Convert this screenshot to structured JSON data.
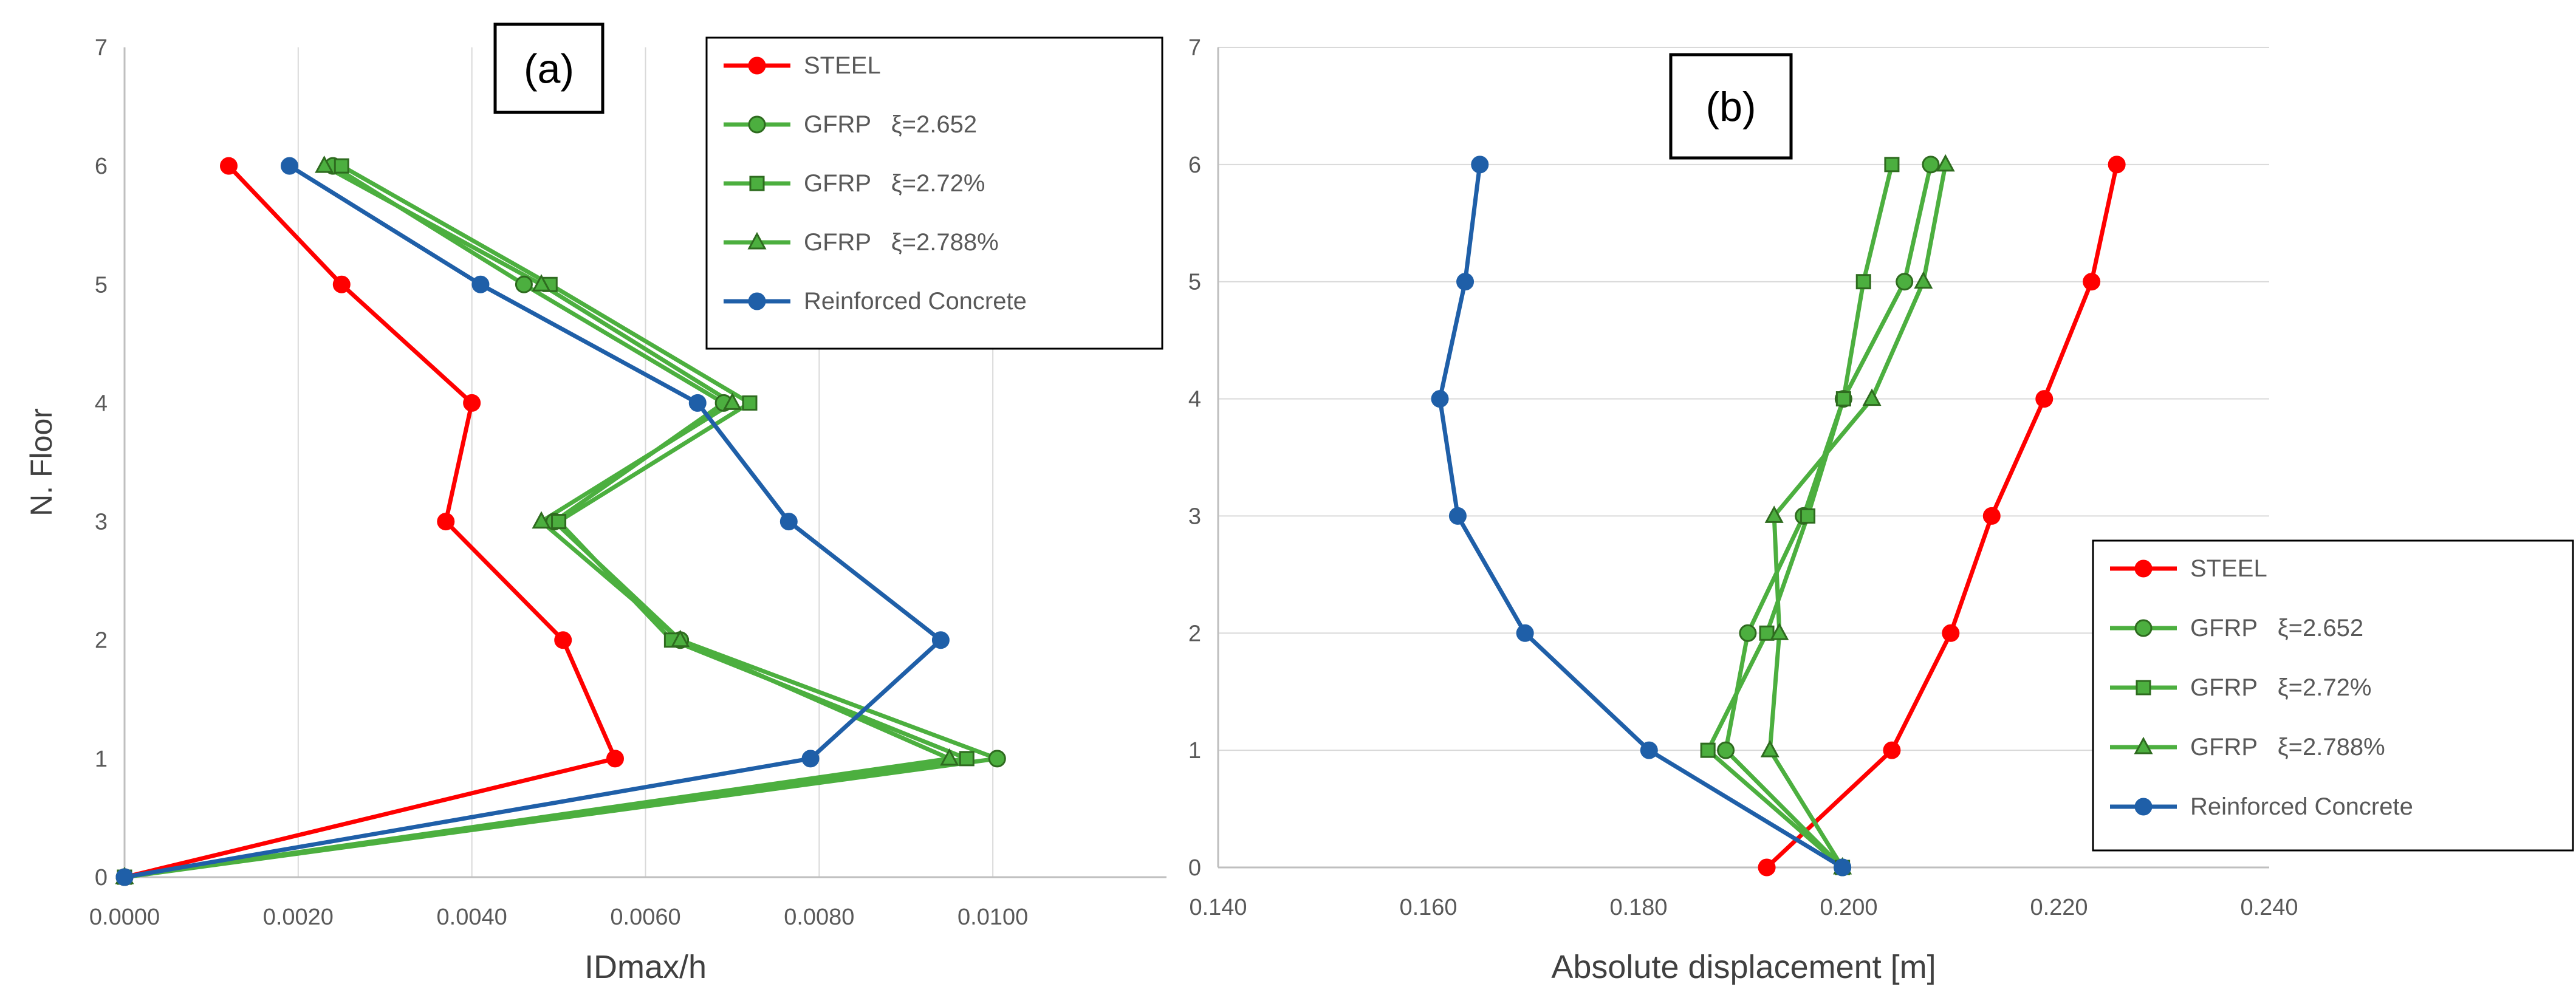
{
  "chart_data": [
    {
      "type": "line",
      "panel_label": "(a)",
      "xlabel": "IDmax/h",
      "ylabel": "N. Floor",
      "xlim": [
        0,
        0.012
      ],
      "ylim": [
        0,
        7
      ],
      "xticks": [
        0.0,
        0.002,
        0.004,
        0.006,
        0.008,
        0.01
      ],
      "xtick_labels": [
        "0.0000",
        "0.0020",
        "0.0040",
        "0.0060",
        "0.0080",
        "0.0100"
      ],
      "yticks": [
        0,
        1,
        2,
        3,
        4,
        5,
        6,
        7
      ],
      "ytick_labels": [
        "0",
        "1",
        "2",
        "3",
        "4",
        "5",
        "6",
        "7"
      ],
      "grid": "vertical",
      "legend_position": "top-right",
      "series": [
        {
          "name": "STEEL",
          "color": "#ff0000",
          "marker": "circle",
          "x": [
            0.0,
            0.00565,
            0.00505,
            0.0037,
            0.004,
            0.0025,
            0.0012
          ],
          "y": [
            0,
            1,
            2,
            3,
            4,
            5,
            6
          ]
        },
        {
          "name": "GFRP   ξ=2.652",
          "color": "#4caf3f",
          "marker": "circle",
          "x": [
            0.0,
            0.01005,
            0.0064,
            0.00495,
            0.0069,
            0.0046,
            0.0024
          ],
          "y": [
            0,
            1,
            2,
            3,
            4,
            5,
            6
          ]
        },
        {
          "name": "GFRP   ξ=2.72%",
          "color": "#4caf3f",
          "marker": "square",
          "x": [
            0.0,
            0.0097,
            0.0063,
            0.005,
            0.0072,
            0.0049,
            0.0025
          ],
          "y": [
            0,
            1,
            2,
            3,
            4,
            5,
            6
          ]
        },
        {
          "name": "GFRP   ξ=2.788%",
          "color": "#4caf3f",
          "marker": "triangle",
          "x": [
            0.0,
            0.0095,
            0.0064,
            0.0048,
            0.007,
            0.0048,
            0.0023
          ],
          "y": [
            0,
            1,
            2,
            3,
            4,
            5,
            6
          ]
        },
        {
          "name": "Reinforced Concrete",
          "color": "#1f5fa8",
          "marker": "circle",
          "x": [
            0.0,
            0.0079,
            0.0094,
            0.00765,
            0.0066,
            0.0041,
            0.0019
          ],
          "y": [
            0,
            1,
            2,
            3,
            4,
            5,
            6
          ]
        }
      ]
    },
    {
      "type": "line",
      "panel_label": "(b)",
      "xlabel": "Absolute displacement [m]",
      "ylabel": "",
      "xlim": [
        0.14,
        0.24
      ],
      "ylim": [
        0,
        7
      ],
      "xticks": [
        0.14,
        0.16,
        0.18,
        0.2,
        0.22,
        0.24
      ],
      "xtick_labels": [
        "0.140",
        "0.160",
        "0.180",
        "0.200",
        "0.220",
        "0.240"
      ],
      "yticks": [
        0,
        1,
        2,
        3,
        4,
        5,
        6,
        7
      ],
      "ytick_labels": [
        "0",
        "1",
        "2",
        "3",
        "4",
        "5",
        "6",
        "7"
      ],
      "grid": "horizontal",
      "legend_position": "bottom-right",
      "series": [
        {
          "name": "STEEL",
          "color": "#ff0000",
          "marker": "circle",
          "x": [
            0.1922,
            0.2041,
            0.2097,
            0.2136,
            0.2186,
            0.2231,
            0.2255
          ],
          "y": [
            0,
            1,
            2,
            3,
            4,
            5,
            6
          ]
        },
        {
          "name": "GFRP   ξ=2.652",
          "color": "#4caf3f",
          "marker": "circle",
          "x": [
            0.1994,
            0.1883,
            0.1904,
            0.1957,
            0.1995,
            0.2053,
            0.2078
          ],
          "y": [
            0,
            1,
            2,
            3,
            4,
            5,
            6
          ]
        },
        {
          "name": "GFRP   ξ=2.72%",
          "color": "#4caf3f",
          "marker": "square",
          "x": [
            0.1994,
            0.1866,
            0.1922,
            0.1961,
            0.1995,
            0.2014,
            0.2041
          ],
          "y": [
            0,
            1,
            2,
            3,
            4,
            5,
            6
          ]
        },
        {
          "name": "GFRP   ξ=2.788%",
          "color": "#4caf3f",
          "marker": "triangle",
          "x": [
            0.1994,
            0.1925,
            0.1934,
            0.1929,
            0.2022,
            0.2071,
            0.2092
          ],
          "y": [
            0,
            1,
            2,
            3,
            4,
            5,
            6
          ]
        },
        {
          "name": "Reinforced Concrete",
          "color": "#1f5fa8",
          "marker": "circle",
          "x": [
            0.1994,
            0.181,
            0.1692,
            0.1628,
            0.1611,
            0.1635,
            0.1649
          ],
          "y": [
            0,
            1,
            2,
            3,
            4,
            5,
            6
          ]
        }
      ]
    }
  ]
}
